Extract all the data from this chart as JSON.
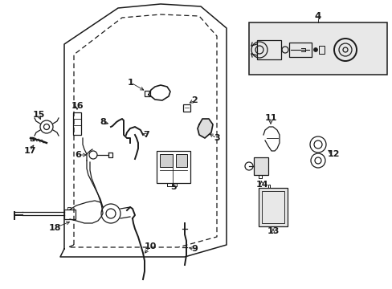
{
  "bg_color": "#ffffff",
  "lc": "#1a1a1a",
  "figsize": [
    4.89,
    3.6
  ],
  "dpi": 100,
  "dot_fill": "#e8e8e8"
}
